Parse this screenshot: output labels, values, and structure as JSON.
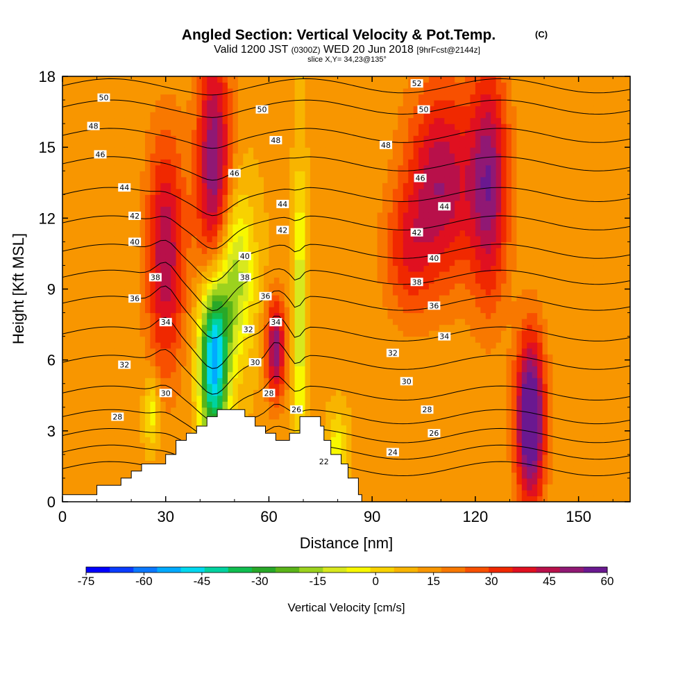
{
  "header": {
    "title": "Angled Section: Vertical Velocity & Pot.Temp.",
    "title_suffix": "(C)",
    "valid_prefix": "Valid 1200 JST",
    "valid_zulu": "(0300Z)",
    "valid_date": "WED 20 Jun 2018",
    "forecast": "[9hrFcst@2144z]",
    "slice": "slice X,Y= 34,23@135°"
  },
  "chart_data": {
    "type": "heatmap",
    "xlabel": "Distance [nm]",
    "ylabel": "Height [Kft MSL]",
    "xlim": [
      0,
      165
    ],
    "ylim": [
      0,
      18
    ],
    "x_ticks": [
      0,
      30,
      60,
      90,
      120,
      150
    ],
    "y_ticks": [
      0,
      3,
      6,
      9,
      12,
      15,
      18
    ],
    "colorbar": {
      "label": "Vertical Velocity [cm/s]",
      "ticks": [
        -75,
        -60,
        -45,
        -30,
        -15,
        0,
        15,
        30,
        45,
        60
      ],
      "range": [
        -75,
        60
      ],
      "colors": [
        "#0000ff",
        "#0a3cff",
        "#0a78ff",
        "#00aaff",
        "#00d8f0",
        "#00d2a0",
        "#10be50",
        "#28a828",
        "#5ab418",
        "#9cd21e",
        "#d8e81e",
        "#f8f800",
        "#f8d200",
        "#f8b400",
        "#f89600",
        "#f87800",
        "#f85000",
        "#f02800",
        "#e01020",
        "#b8104a",
        "#901874",
        "#6a1890"
      ]
    },
    "terrain": [
      [
        0,
        0.3
      ],
      [
        10,
        0.3
      ],
      [
        10,
        0.7
      ],
      [
        17,
        0.7
      ],
      [
        17,
        1.0
      ],
      [
        20,
        1.0
      ],
      [
        20,
        1.3
      ],
      [
        23,
        1.3
      ],
      [
        23,
        1.6
      ],
      [
        30,
        1.6
      ],
      [
        30,
        2.0
      ],
      [
        33,
        2.0
      ],
      [
        33,
        2.6
      ],
      [
        36,
        2.6
      ],
      [
        36,
        2.9
      ],
      [
        39,
        2.9
      ],
      [
        39,
        3.2
      ],
      [
        42,
        3.2
      ],
      [
        42,
        3.6
      ],
      [
        45,
        3.6
      ],
      [
        45,
        3.9
      ],
      [
        53,
        3.9
      ],
      [
        53,
        3.6
      ],
      [
        56,
        3.6
      ],
      [
        56,
        3.2
      ],
      [
        59,
        3.2
      ],
      [
        59,
        2.9
      ],
      [
        62,
        2.9
      ],
      [
        62,
        2.6
      ],
      [
        66,
        2.6
      ],
      [
        66,
        2.9
      ],
      [
        69,
        2.9
      ],
      [
        69,
        3.6
      ],
      [
        75,
        3.6
      ],
      [
        75,
        3.2
      ],
      [
        76,
        3.2
      ],
      [
        76,
        2.6
      ],
      [
        78,
        2.6
      ],
      [
        78,
        2.0
      ],
      [
        81,
        2.0
      ],
      [
        81,
        1.6
      ],
      [
        83,
        1.6
      ],
      [
        83,
        1.0
      ],
      [
        86,
        1.0
      ],
      [
        86,
        0.3
      ],
      [
        87,
        0.3
      ]
    ],
    "updrafts": [
      {
        "x": 30,
        "y": 10.5,
        "sx": 4,
        "sy": 3.5,
        "w": 35
      },
      {
        "x": 44,
        "y": 14,
        "sx": 3.5,
        "sy": 4,
        "w": 42
      },
      {
        "x": 62,
        "y": 6.5,
        "sx": 2,
        "sy": 1.5,
        "w": 40
      },
      {
        "x": 110,
        "y": 13.5,
        "sx": 7,
        "sy": 3,
        "w": 35
      },
      {
        "x": 124,
        "y": 13.5,
        "sx": 4,
        "sy": 3.5,
        "w": 38
      },
      {
        "x": 136,
        "y": 3.5,
        "sx": 3,
        "sy": 2.5,
        "w": 58
      },
      {
        "x": 100,
        "y": 10.5,
        "sx": 5,
        "sy": 2,
        "w": 18
      }
    ],
    "downdrafts": [
      {
        "x": 44,
        "y": 6,
        "sx": 3,
        "sy": 2.5,
        "w": -70
      },
      {
        "x": 50,
        "y": 9.5,
        "sx": 4,
        "sy": 2.5,
        "w": -30
      },
      {
        "x": 69,
        "y": 8,
        "sx": 1.2,
        "sy": 4,
        "w": -28
      },
      {
        "x": 26,
        "y": 3.8,
        "sx": 1.5,
        "sy": 1.0,
        "w": -20
      },
      {
        "x": 80,
        "y": 2.3,
        "sx": 2,
        "sy": 1.0,
        "w": -18
      }
    ],
    "isentropes": [
      {
        "v": "22",
        "y": 1.4
      },
      {
        "v": "24",
        "y": 2.1
      },
      {
        "v": "26",
        "y": 2.8
      },
      {
        "v": "28",
        "y": 3.6
      },
      {
        "v": "30",
        "y": 4.6
      },
      {
        "v": "32",
        "y": 5.9
      },
      {
        "v": "34",
        "y": 7.1
      },
      {
        "v": "36",
        "y": 8.4
      },
      {
        "v": "38",
        "y": 9.5
      },
      {
        "v": "40",
        "y": 10.6
      },
      {
        "v": "42",
        "y": 11.8
      },
      {
        "v": "44",
        "y": 13.0
      },
      {
        "v": "46",
        "y": 14.3
      },
      {
        "v": "48",
        "y": 15.5
      },
      {
        "v": "50",
        "y": 16.7
      },
      {
        "v": "52",
        "y": 17.6
      }
    ],
    "contour_labels": [
      {
        "text": "50",
        "x": 12,
        "y": 17.1
      },
      {
        "text": "48",
        "x": 9,
        "y": 15.9
      },
      {
        "text": "46",
        "x": 11,
        "y": 14.7
      },
      {
        "text": "44",
        "x": 18,
        "y": 13.3
      },
      {
        "text": "42",
        "x": 21,
        "y": 12.1
      },
      {
        "text": "40",
        "x": 21,
        "y": 11.0
      },
      {
        "text": "38",
        "x": 27,
        "y": 9.5
      },
      {
        "text": "36",
        "x": 21,
        "y": 8.6
      },
      {
        "text": "34",
        "x": 30,
        "y": 7.6
      },
      {
        "text": "32",
        "x": 18,
        "y": 5.8
      },
      {
        "text": "30",
        "x": 30,
        "y": 4.6
      },
      {
        "text": "28",
        "x": 16,
        "y": 3.6
      },
      {
        "text": "50",
        "x": 58,
        "y": 16.6
      },
      {
        "text": "48",
        "x": 62,
        "y": 15.3
      },
      {
        "text": "46",
        "x": 50,
        "y": 13.9
      },
      {
        "text": "44",
        "x": 64,
        "y": 12.6
      },
      {
        "text": "42",
        "x": 64,
        "y": 11.5
      },
      {
        "text": "40",
        "x": 53,
        "y": 10.4
      },
      {
        "text": "38",
        "x": 53,
        "y": 9.5
      },
      {
        "text": "36",
        "x": 59,
        "y": 8.7
      },
      {
        "text": "34",
        "x": 62,
        "y": 7.6
      },
      {
        "text": "32",
        "x": 54,
        "y": 7.3
      },
      {
        "text": "30",
        "x": 56,
        "y": 5.9
      },
      {
        "text": "28",
        "x": 60,
        "y": 4.6
      },
      {
        "text": "26",
        "x": 68,
        "y": 3.9
      },
      {
        "text": "22",
        "x": 76,
        "y": 1.7
      },
      {
        "text": "52",
        "x": 103,
        "y": 17.7
      },
      {
        "text": "50",
        "x": 105,
        "y": 16.6
      },
      {
        "text": "48",
        "x": 94,
        "y": 15.1
      },
      {
        "text": "46",
        "x": 104,
        "y": 13.7
      },
      {
        "text": "44",
        "x": 111,
        "y": 12.5
      },
      {
        "text": "42",
        "x": 103,
        "y": 11.4
      },
      {
        "text": "40",
        "x": 108,
        "y": 10.3
      },
      {
        "text": "38",
        "x": 103,
        "y": 9.3
      },
      {
        "text": "36",
        "x": 108,
        "y": 8.3
      },
      {
        "text": "34",
        "x": 111,
        "y": 7.0
      },
      {
        "text": "32",
        "x": 96,
        "y": 6.3
      },
      {
        "text": "30",
        "x": 100,
        "y": 5.1
      },
      {
        "text": "28",
        "x": 106,
        "y": 3.9
      },
      {
        "text": "26",
        "x": 108,
        "y": 2.9
      },
      {
        "text": "24",
        "x": 96,
        "y": 2.1
      }
    ]
  }
}
